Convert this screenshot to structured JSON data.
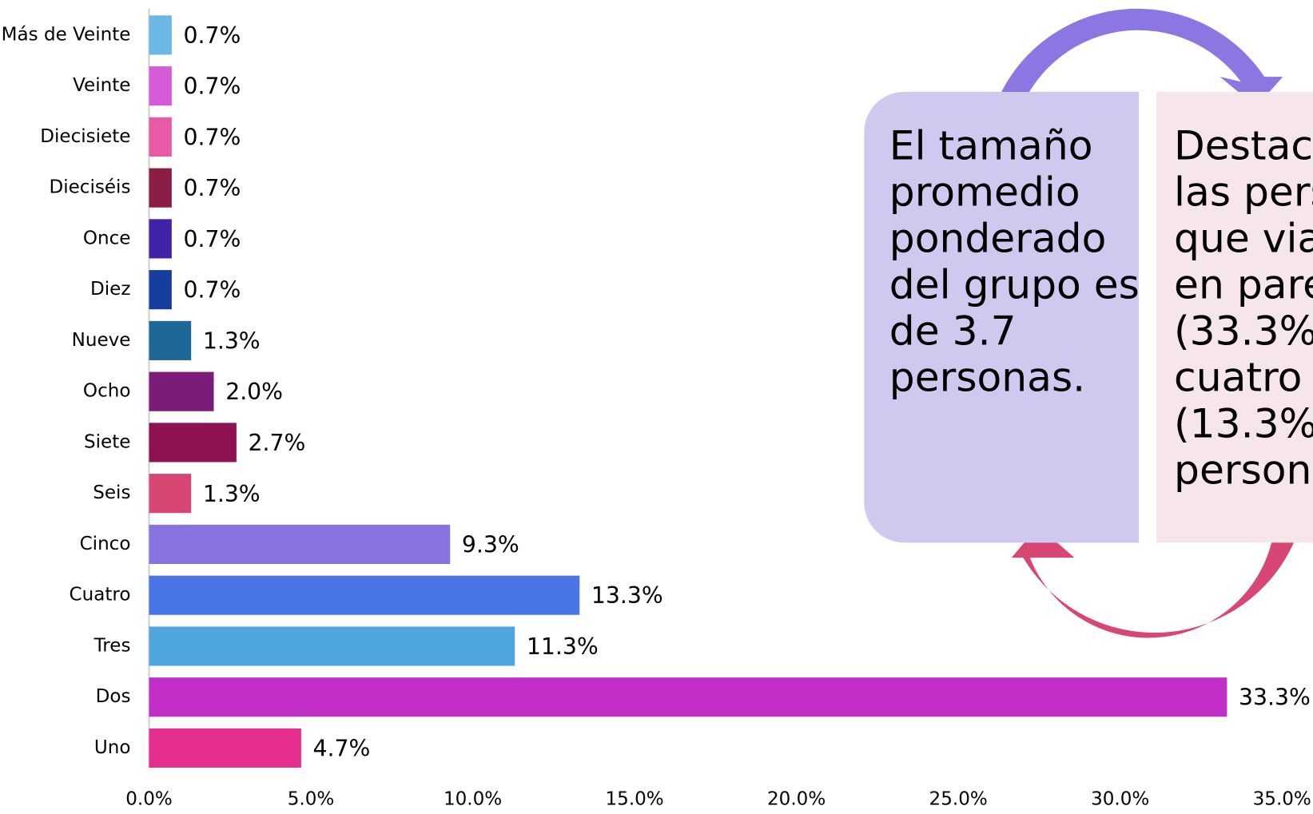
{
  "chart_data": {
    "type": "barh",
    "categories": [
      "Más de Veinte",
      "Veinte",
      "Diecisiete",
      "Dieciséis",
      "Once",
      "Diez",
      "Nueve",
      "Ocho",
      "Siete",
      "Seis",
      "Cinco",
      "Cuatro",
      "Tres",
      "Dos",
      "Uno"
    ],
    "values": [
      0.7,
      0.7,
      0.7,
      0.7,
      0.7,
      0.7,
      1.3,
      2.0,
      2.7,
      1.3,
      9.3,
      13.3,
      11.3,
      33.3,
      4.7
    ],
    "value_labels": [
      "0.7%",
      "0.7%",
      "0.7%",
      "0.7%",
      "0.7%",
      "0.7%",
      "1.3%",
      "2.0%",
      "2.7%",
      "1.3%",
      "9.3%",
      "13.3%",
      "11.3%",
      "33.3%",
      "4.7%"
    ],
    "colors": [
      "#6cb8e4",
      "#d55bd8",
      "#e85aa5",
      "#8b1e45",
      "#4222a8",
      "#173d9e",
      "#1e6898",
      "#7a1c78",
      "#8e1152",
      "#d84774",
      "#8873e0",
      "#4a75e6",
      "#4fa6de",
      "#c22ec8",
      "#e52e8e"
    ],
    "xlim": [
      0,
      35
    ],
    "xticks": [
      {
        "value": 0,
        "label": "0.0%"
      },
      {
        "value": 5,
        "label": "5.0%"
      },
      {
        "value": 10,
        "label": "10.0%"
      },
      {
        "value": 15,
        "label": "15.0%"
      },
      {
        "value": 20,
        "label": "20.0%"
      },
      {
        "value": 25,
        "label": "25.0%"
      },
      {
        "value": 30,
        "label": "30.0%"
      },
      {
        "value": 35,
        "label": "35.0%"
      }
    ],
    "grid": false
  },
  "boxes": [
    {
      "lines": [
        "El tamaño",
        "promedio",
        "ponderado",
        "del grupo es",
        "de 3.7",
        "personas."
      ]
    },
    {
      "lines": [
        "Destaca",
        "las pers",
        "que viaj",
        "en pare",
        "(33.3%",
        "cuatro",
        "(13.3%",
        "persona"
      ]
    }
  ]
}
